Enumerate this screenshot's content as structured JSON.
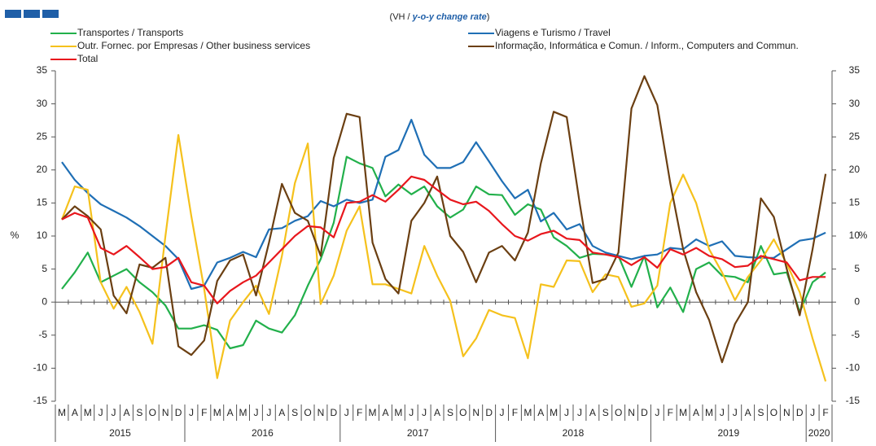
{
  "chart_data": {
    "type": "line",
    "subtitle": [
      "(VH / ",
      "y-o-y change rate",
      ")"
    ],
    "y_label": "%",
    "categories": [
      "M",
      "A",
      "M",
      "J",
      "J",
      "A",
      "S",
      "O",
      "N",
      "D",
      "J",
      "F",
      "M",
      "A",
      "M",
      "J",
      "J",
      "A",
      "S",
      "O",
      "N",
      "D",
      "J",
      "F",
      "M",
      "A",
      "M",
      "J",
      "J",
      "A",
      "S",
      "O",
      "N",
      "D",
      "J",
      "F",
      "M",
      "A",
      "M",
      "J",
      "J",
      "A",
      "S",
      "O",
      "N",
      "D",
      "J",
      "F",
      "M",
      "A",
      "M",
      "J",
      "J",
      "A",
      "S",
      "O",
      "N",
      "D",
      "J",
      "F"
    ],
    "years": [
      {
        "label": "2015",
        "span": 10
      },
      {
        "label": "2016",
        "span": 12
      },
      {
        "label": "2017",
        "span": 12
      },
      {
        "label": "2018",
        "span": 12
      },
      {
        "label": "2019",
        "span": 12
      },
      {
        "label": "2020",
        "span": 2
      }
    ],
    "ylim": [
      -15,
      35
    ],
    "yticks": [
      -15,
      -10,
      -5,
      0,
      5,
      10,
      15,
      20,
      25,
      30,
      35
    ],
    "y2lim": [
      -15,
      35
    ],
    "y2ticks": [
      -15,
      -10,
      -5,
      0,
      5,
      10,
      15,
      20,
      25,
      30,
      35
    ],
    "series": [
      {
        "name": "Transportes / Transports",
        "color": "#22b04b",
        "values": [
          2,
          4.5,
          7.5,
          3,
          4,
          5,
          3,
          1.5,
          -0.5,
          -4,
          -4,
          -3.5,
          -4.2,
          -7,
          -6.5,
          -2.8,
          -4,
          -4.6,
          -2,
          2.5,
          6.5,
          12,
          22,
          21,
          20.3,
          16,
          17.8,
          16.3,
          17.5,
          14.5,
          12.8,
          14,
          17.5,
          16.3,
          16.2,
          13.2,
          14.8,
          14,
          9.8,
          8.5,
          6.7,
          7.3,
          7.2,
          7,
          2.3,
          7,
          -0.8,
          2.2,
          -1.5,
          5,
          6,
          4,
          3.8,
          3,
          8.5,
          4.2,
          4.5,
          -1.5,
          3,
          4.5
        ]
      },
      {
        "name": "Viagens e Turismo / Travel",
        "color": "#1f6fb5",
        "values": [
          21.2,
          18.5,
          16.5,
          14.8,
          13.8,
          12.8,
          11.5,
          10,
          8.5,
          6.5,
          2,
          2.5,
          6,
          6.7,
          7.6,
          6.8,
          11,
          11.2,
          12.3,
          13,
          15.3,
          14.5,
          15.5,
          15,
          15.5,
          22,
          23,
          27.6,
          22.3,
          20.3,
          20.3,
          21.2,
          24.2,
          21.3,
          18.3,
          15.7,
          17,
          12.2,
          13.5,
          11,
          11.8,
          8.5,
          7.5,
          7,
          6.5,
          7,
          7.2,
          8.2,
          8,
          9.5,
          8.5,
          9.2,
          7,
          6.8,
          6.7,
          6.7,
          8,
          9.3,
          9.6,
          10.5
        ]
      },
      {
        "name": "Outr. Fornec. por Empresas / Other business services",
        "color": "#f5c11c",
        "values": [
          12.5,
          17.5,
          17,
          3,
          -1,
          2.3,
          -1.5,
          -6.3,
          10,
          25.3,
          13,
          2,
          -11.5,
          -2.8,
          0,
          2.5,
          -1.8,
          7,
          18,
          24,
          -0.3,
          4,
          10.8,
          14.5,
          2.7,
          2.7,
          2,
          1.3,
          8.5,
          4,
          0.2,
          -8.2,
          -5.5,
          -1.2,
          -2,
          -2.4,
          -8.5,
          2.7,
          2.3,
          6.3,
          6.2,
          1.5,
          4.2,
          3.8,
          -0.7,
          -0.2,
          2.5,
          15,
          19.3,
          15,
          8,
          4.5,
          0.3,
          3.8,
          6.3,
          9.5,
          5.8,
          1.5,
          -5.5,
          -12
        ]
      },
      {
        "name": "Informação, Informática e Comun. / Inform., Computers and Commun.",
        "color": "#6b3f12",
        "values": [
          12.5,
          14.5,
          13,
          11,
          1,
          -1.7,
          5.7,
          5.2,
          6.7,
          -6.7,
          -8,
          -5.8,
          3.2,
          6.3,
          7.2,
          1,
          9,
          17.9,
          13.5,
          12.3,
          7,
          21.8,
          28.5,
          28,
          9,
          3.5,
          1.3,
          12.3,
          15,
          19,
          10,
          7.6,
          3,
          7.5,
          8.5,
          6.3,
          10.5,
          21,
          28.8,
          28,
          15,
          2.9,
          3.5,
          7.5,
          29.3,
          34.2,
          29.8,
          18,
          8,
          1.5,
          -2.7,
          -9.1,
          -3.3,
          0,
          15.7,
          12.9,
          5,
          -2,
          8,
          19.4
        ]
      },
      {
        "name": "Total",
        "color": "#e8171d",
        "values": [
          12.5,
          13.5,
          12.8,
          8.2,
          7.2,
          8.5,
          6.8,
          5,
          5.3,
          6.7,
          3,
          2.5,
          -0.2,
          1.7,
          3,
          4,
          6,
          8,
          10,
          11.5,
          11.3,
          9.8,
          15,
          15.2,
          16.2,
          15.2,
          17,
          19,
          18.5,
          17,
          15.5,
          14.8,
          15.2,
          13.8,
          11.8,
          10,
          9.3,
          10.3,
          10.8,
          9.6,
          9.4,
          7.5,
          7.2,
          6.8,
          5.6,
          6.8,
          5.2,
          8,
          7.2,
          8.2,
          7,
          6.5,
          5.3,
          5.5,
          7,
          6.5,
          6,
          3.3,
          3.8,
          3.8
        ]
      }
    ]
  }
}
